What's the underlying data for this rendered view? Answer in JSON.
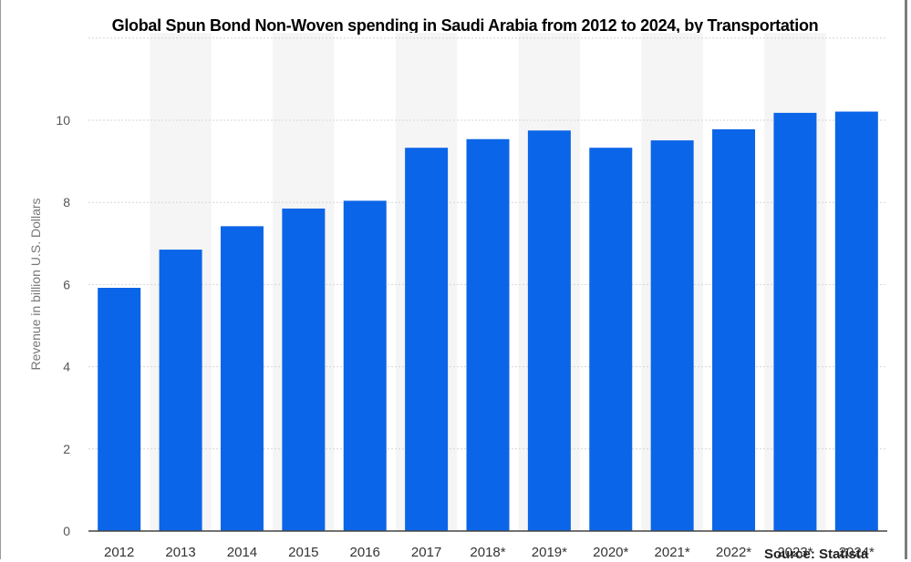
{
  "chart_data": {
    "type": "bar",
    "title": "Global Spun Bond Non-Woven spending in Saudi Arabia from 2012 to 2024, by Transportation",
    "ylabel": "Revenue in billion U.S. Dollars",
    "xlabel": "",
    "categories": [
      "2012",
      "2013",
      "2014",
      "2015",
      "2016",
      "2017",
      "2018*",
      "2019*",
      "2020*",
      "2021*",
      "2022*",
      "2023*",
      "2024*"
    ],
    "values": [
      5.92,
      6.85,
      7.42,
      7.85,
      8.04,
      9.33,
      9.54,
      9.75,
      9.33,
      9.51,
      9.78,
      10.18,
      10.21
    ],
    "ylim": [
      0,
      12
    ],
    "yticks": [
      0,
      2,
      4,
      6,
      8,
      10
    ],
    "grid": true,
    "bar_color": "#0b65e8",
    "band_color": "#f5f5f5"
  },
  "source_fragment": "Source: Statista"
}
